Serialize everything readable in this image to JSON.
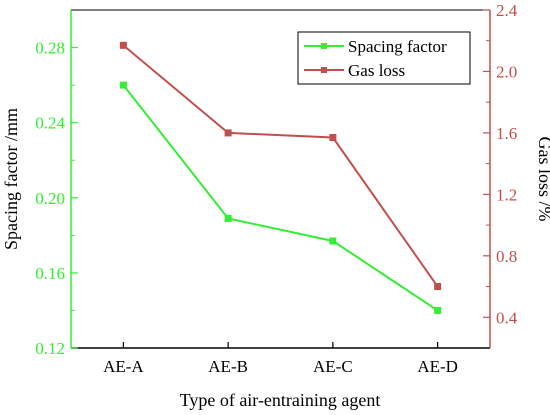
{
  "chart_data": {
    "type": "line",
    "categories": [
      "AE-A",
      "AE-B",
      "AE-C",
      "AE-D"
    ],
    "xlabel": "Type of air-entraining agent",
    "series": [
      {
        "name": "Spacing factor",
        "axis": "left",
        "color": "#33ee33",
        "values": [
          0.26,
          0.189,
          0.177,
          0.14
        ]
      },
      {
        "name": "Gas loss",
        "axis": "right",
        "color": "#c0504d",
        "values": [
          2.17,
          1.6,
          1.57,
          0.6
        ]
      }
    ],
    "y_left": {
      "label": "Spacing factor /mm",
      "color": "#33ee33",
      "ylim": [
        0.12,
        0.3
      ],
      "ticks": [
        "0.12",
        "0.16",
        "0.20",
        "0.24",
        "0.28"
      ]
    },
    "y_right": {
      "label": "Gas loss /%",
      "color": "#c0504d",
      "ylim": [
        0.2,
        2.4
      ],
      "ticks": [
        "0.4",
        "0.8",
        "1.2",
        "1.6",
        "2.0",
        "2.4"
      ]
    },
    "legend": {
      "placement": "top-right",
      "entries": [
        "Spacing factor",
        "Gas loss"
      ]
    },
    "grid": false
  }
}
